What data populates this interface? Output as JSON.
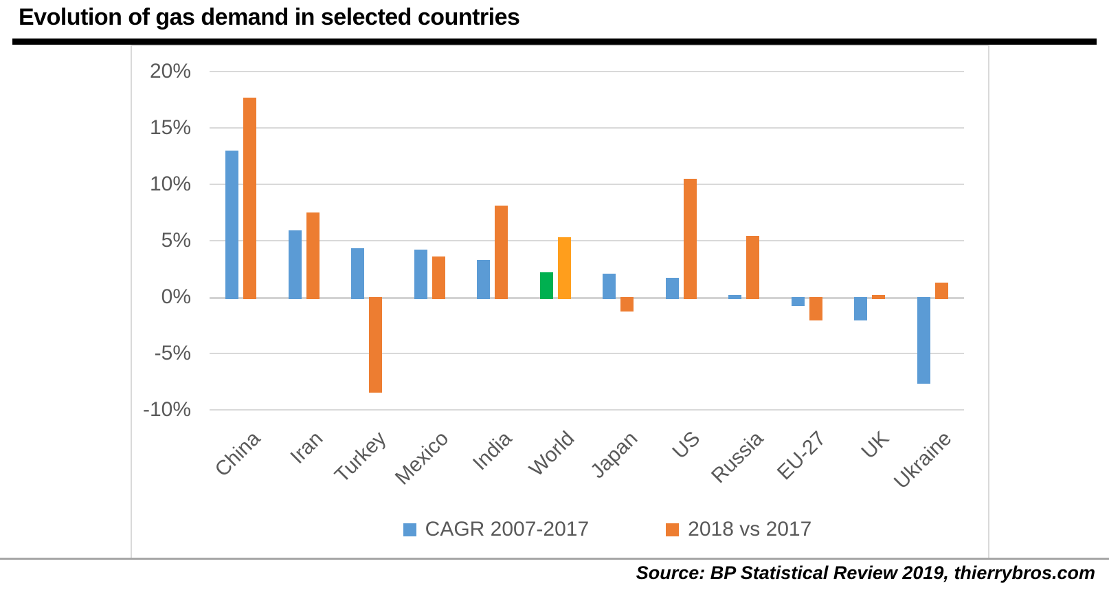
{
  "page": {
    "title": "Evolution of gas demand in selected countries",
    "source": "Source: BP Statistical Review 2019, thierrybros.com"
  },
  "chart_data": {
    "type": "bar",
    "title": "Evolution of gas demand in selected countries",
    "categories": [
      "China",
      "Iran",
      "Turkey",
      "Mexico",
      "India",
      "World",
      "Japan",
      "US",
      "Russia",
      "EU-27",
      "UK",
      "Ukraine"
    ],
    "series": [
      {
        "name": "CAGR 2007-2017",
        "color": "#5B9BD5",
        "values": [
          13.0,
          5.9,
          4.3,
          4.2,
          3.3,
          2.2,
          2.1,
          1.7,
          0.2,
          -0.6,
          -1.9,
          -7.5
        ]
      },
      {
        "name": "2018 vs 2017",
        "color": "#ED7D31",
        "values": [
          17.7,
          7.5,
          -8.3,
          3.6,
          8.1,
          5.3,
          -1.1,
          10.5,
          5.4,
          -1.9,
          0.2,
          1.3
        ]
      }
    ],
    "highlight": {
      "category": "World",
      "colors": [
        "#00B050",
        "#FF9E1C"
      ]
    },
    "xlabel": "",
    "ylabel": "",
    "unit": "%",
    "ylim": [
      -10,
      20
    ],
    "y_ticks": [
      "20%",
      "15%",
      "10%",
      "5%",
      "0%",
      "-5%",
      "-10%"
    ],
    "grid": true,
    "legend_position": "bottom"
  }
}
